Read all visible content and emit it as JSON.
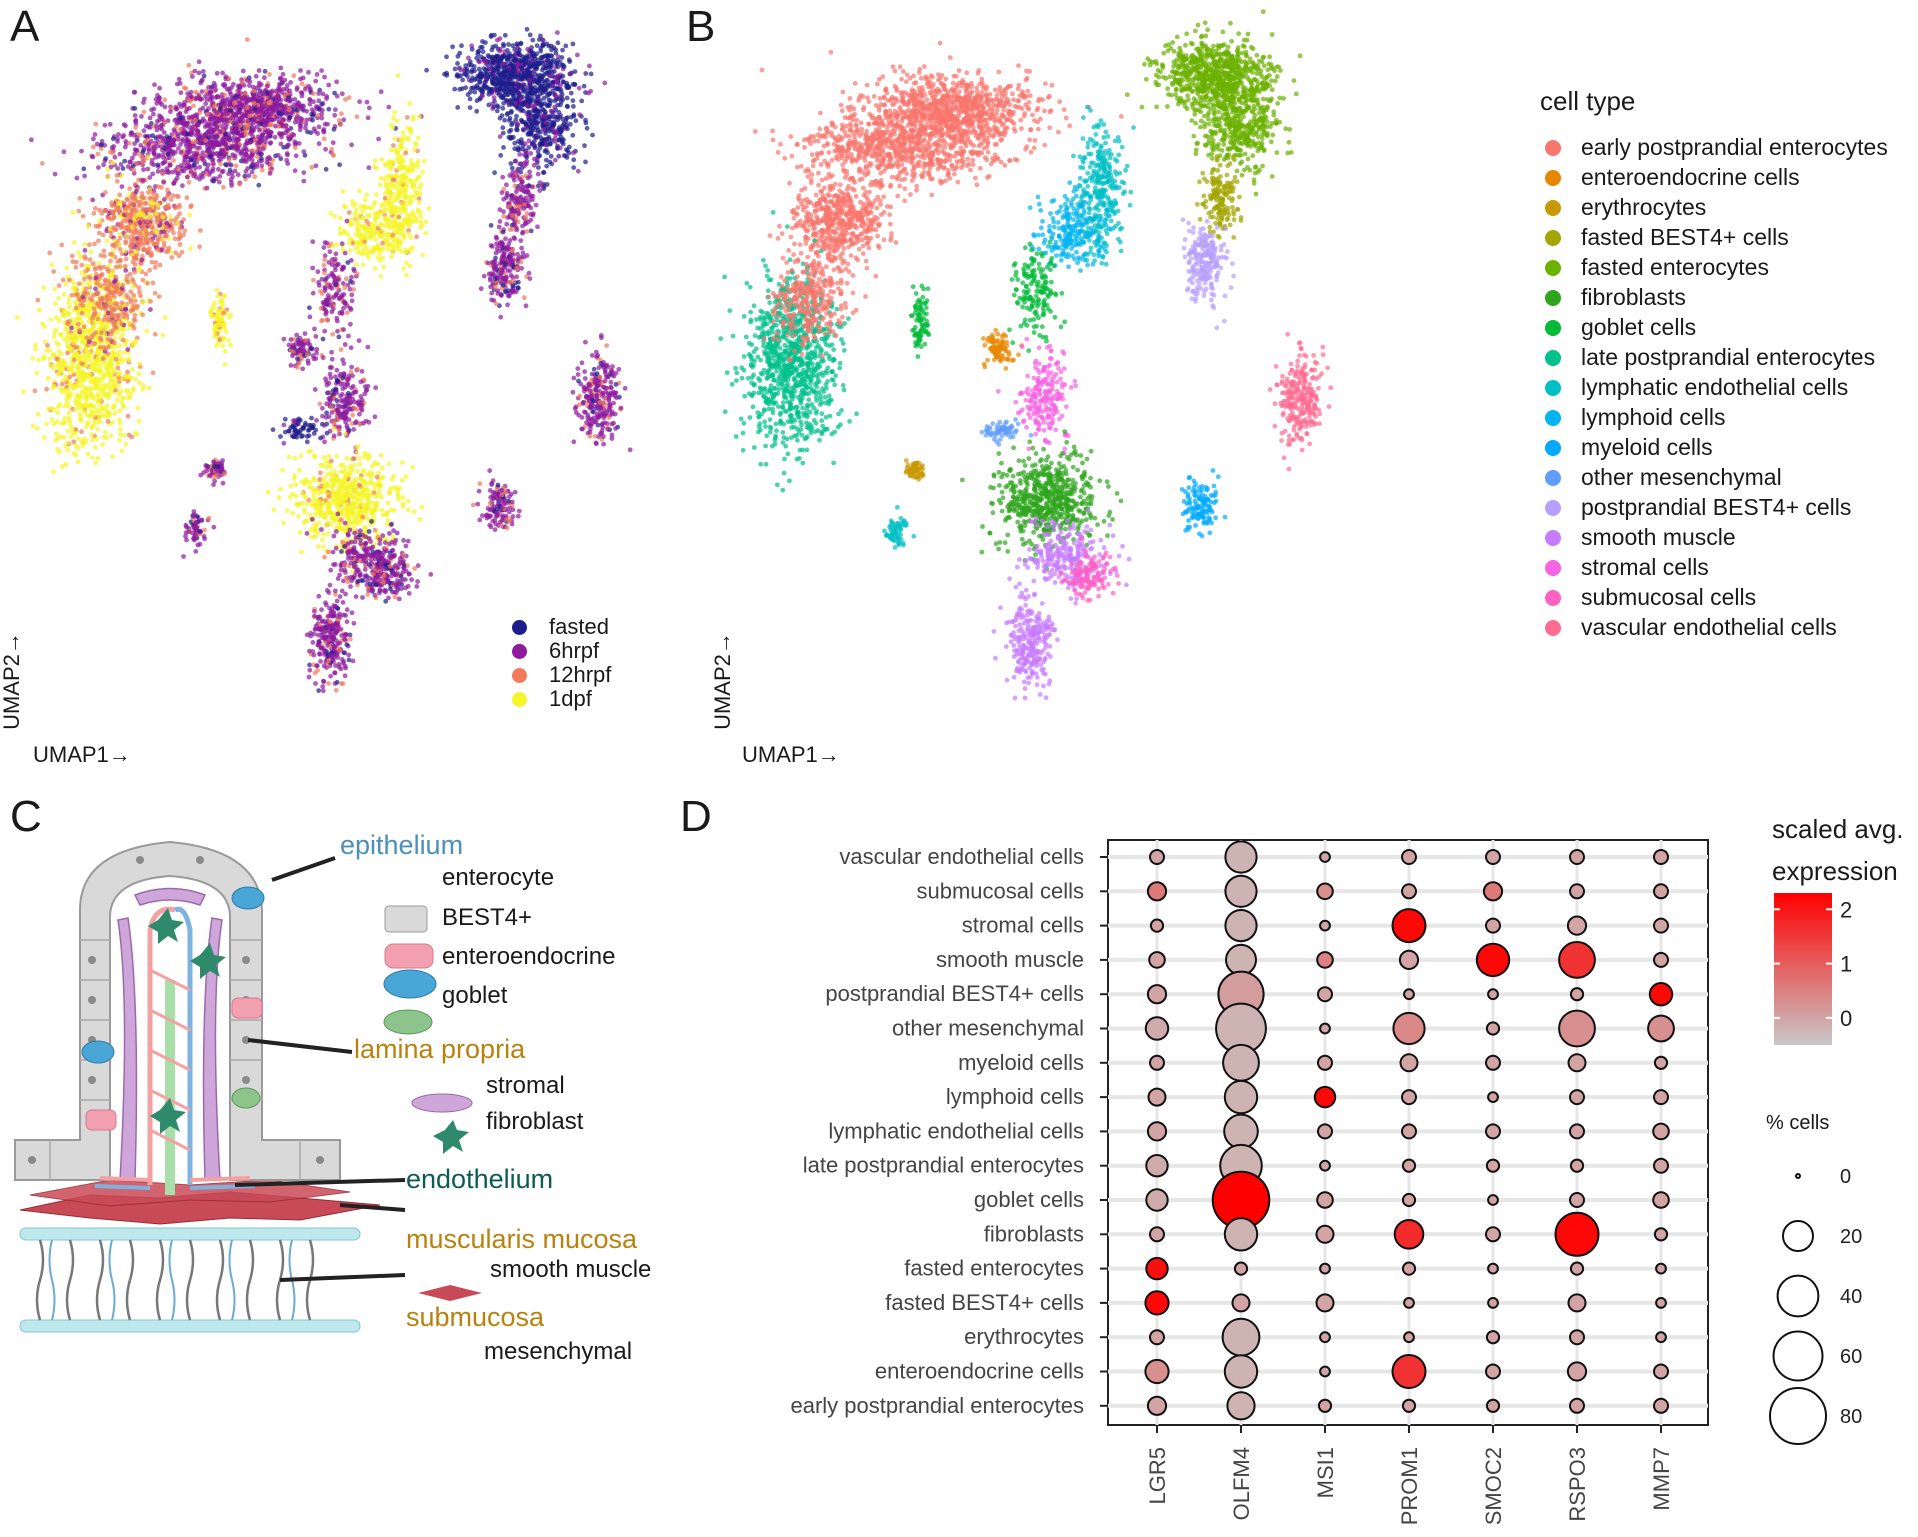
{
  "panel_letters": {
    "a": "A",
    "b": "B",
    "c": "C",
    "d": "D"
  },
  "umap_axes": {
    "x_label": "UMAP1→",
    "y_label": "UMAP2→"
  },
  "chart_data": [
    {
      "panel": "A",
      "type": "scatter",
      "xlabel": "UMAP1→",
      "ylabel": "UMAP2→",
      "legend_title": "",
      "legend_position": "bottom-right",
      "series": [
        {
          "name": "fasted",
          "color": "#1c1c8c"
        },
        {
          "name": "6hrpf",
          "color": "#8e1a9e"
        },
        {
          "name": "12hrpf",
          "color": "#f07a5a"
        },
        {
          "name": "1dpf",
          "color": "#f5f52a"
        }
      ]
    },
    {
      "panel": "B",
      "type": "scatter",
      "xlabel": "UMAP1→",
      "ylabel": "UMAP2→",
      "legend_title": "cell type",
      "legend_position": "right",
      "series": [
        {
          "name": "early postprandial enterocytes",
          "color": "#f8766d"
        },
        {
          "name": "enteroendocrine cells",
          "color": "#e58700"
        },
        {
          "name": "erythrocytes",
          "color": "#c99800"
        },
        {
          "name": "fasted BEST4+ cells",
          "color": "#a3a500"
        },
        {
          "name": "fasted enterocytes",
          "color": "#6bb100"
        },
        {
          "name": "fibroblasts",
          "color": "#2fa51e"
        },
        {
          "name": "goblet cells",
          "color": "#00ba38"
        },
        {
          "name": "late postprandial enterocytes",
          "color": "#00c08b"
        },
        {
          "name": "lymphatic endothelial cells",
          "color": "#00bfc4"
        },
        {
          "name": "lymphoid cells",
          "color": "#00b4ef"
        },
        {
          "name": "myeloid cells",
          "color": "#00a9ff"
        },
        {
          "name": "other mesenchymal",
          "color": "#619cff"
        },
        {
          "name": "postprandial BEST4+ cells",
          "color": "#b79fff"
        },
        {
          "name": "smooth muscle",
          "color": "#c77cff"
        },
        {
          "name": "stromal cells",
          "color": "#f564e3"
        },
        {
          "name": "submucosal cells",
          "color": "#ff61c3"
        },
        {
          "name": "vascular endothelial cells",
          "color": "#ff6c91"
        }
      ]
    },
    {
      "panel": "D",
      "type": "scatter",
      "subtype": "dot plot",
      "genes": [
        "LGR5",
        "OLFM4",
        "MSI1",
        "PROM1",
        "SMOC2",
        "RSPO3",
        "MMP7"
      ],
      "cell_types": [
        "vascular endothelial cells",
        "submucosal cells",
        "stromal cells",
        "smooth muscle",
        "postprandial BEST4+ cells",
        "other mesenchymal",
        "myeloid cells",
        "lymphoid cells",
        "lymphatic endothelial cells",
        "late postprandial enterocytes",
        "goblet cells",
        "fibroblasts",
        "fasted enterocytes",
        "fasted BEST4+ cells",
        "erythrocytes",
        "enteroendocrine cells",
        "early postprandial enterocytes"
      ],
      "color_legend_title": [
        "scaled avg.",
        "expression"
      ],
      "color_ticks": [
        "2",
        "1",
        "0"
      ],
      "color_range": [
        -0.5,
        2.3
      ],
      "size_legend_title": "% cells",
      "size_ticks": [
        "0",
        "20",
        "40",
        "60",
        "80"
      ],
      "size_range": [
        0,
        80
      ],
      "grid": true,
      "rows": [
        {
          "cell_type": "vascular endothelial cells",
          "pct": [
            3,
            22,
            1,
            3,
            3,
            3,
            3
          ],
          "expr": [
            0,
            -0.2,
            0,
            0,
            0,
            0,
            0
          ]
        },
        {
          "cell_type": "submucosal cells",
          "pct": [
            6,
            22,
            4,
            3,
            6,
            3,
            3
          ],
          "expr": [
            0.6,
            -0.2,
            0.3,
            0,
            0.6,
            0,
            0
          ]
        },
        {
          "cell_type": "stromal cells",
          "pct": [
            2,
            22,
            1,
            25,
            3,
            6,
            3
          ],
          "expr": [
            0,
            -0.2,
            0,
            2.2,
            0,
            0,
            0
          ]
        },
        {
          "cell_type": "smooth muscle",
          "pct": [
            4,
            20,
            4,
            6,
            24,
            30,
            3
          ],
          "expr": [
            0,
            -0.2,
            0.5,
            0,
            2.2,
            1.6,
            0
          ]
        },
        {
          "cell_type": "postprandial BEST4+ cells",
          "pct": [
            6,
            50,
            3,
            1,
            1,
            2,
            10
          ],
          "expr": [
            0,
            0.1,
            0,
            0,
            0,
            0,
            2.2
          ]
        },
        {
          "cell_type": "other mesenchymal",
          "pct": [
            10,
            62,
            1,
            22,
            2,
            30,
            14
          ],
          "expr": [
            -0.1,
            -0.2,
            0,
            0.4,
            0,
            0.3,
            0.3
          ]
        },
        {
          "cell_type": "myeloid cells",
          "pct": [
            3,
            30,
            3,
            5,
            3,
            5,
            2
          ],
          "expr": [
            0,
            -0.2,
            0,
            0,
            0,
            0,
            0
          ]
        },
        {
          "cell_type": "lymphoid cells",
          "pct": [
            5,
            24,
            8,
            3,
            1,
            3,
            3
          ],
          "expr": [
            0,
            -0.2,
            2.2,
            0,
            0,
            0,
            0
          ]
        },
        {
          "cell_type": "lymphatic endothelial cells",
          "pct": [
            6,
            26,
            3,
            3,
            3,
            3,
            4
          ],
          "expr": [
            0,
            -0.2,
            0,
            0,
            0,
            0,
            0
          ]
        },
        {
          "cell_type": "late postprandial enterocytes",
          "pct": [
            9,
            42,
            1,
            2,
            2,
            2,
            3
          ],
          "expr": [
            -0.1,
            -0.2,
            0,
            0,
            0,
            0,
            0
          ]
        },
        {
          "cell_type": "goblet cells",
          "pct": [
            9,
            82,
            4,
            2,
            1,
            3,
            4
          ],
          "expr": [
            -0.1,
            2.3,
            0,
            0,
            0,
            0,
            0
          ]
        },
        {
          "cell_type": "fibroblasts",
          "pct": [
            3,
            24,
            5,
            18,
            3,
            45,
            2
          ],
          "expr": [
            0,
            -0.2,
            0,
            1.7,
            0,
            2.2,
            0
          ]
        },
        {
          "cell_type": "fasted enterocytes",
          "pct": [
            9,
            2,
            1,
            2,
            1,
            2,
            1
          ],
          "expr": [
            2.1,
            0,
            0,
            0,
            0,
            0,
            0
          ]
        },
        {
          "cell_type": "fasted BEST4+ cells",
          "pct": [
            11,
            5,
            5,
            1,
            1,
            5,
            1
          ],
          "expr": [
            2.2,
            0,
            0,
            0,
            0,
            0,
            0
          ]
        },
        {
          "cell_type": "erythrocytes",
          "pct": [
            3,
            32,
            1,
            1,
            2,
            3,
            1
          ],
          "expr": [
            0,
            -0.2,
            0,
            0,
            0,
            0,
            0
          ]
        },
        {
          "cell_type": "enteroendocrine cells",
          "pct": [
            11,
            24,
            1,
            25,
            3,
            6,
            3
          ],
          "expr": [
            0.3,
            -0.2,
            0,
            1.6,
            0,
            0,
            0
          ]
        },
        {
          "cell_type": "early postprandial enterocytes",
          "pct": [
            6,
            16,
            2,
            2,
            2,
            3,
            3
          ],
          "expr": [
            0,
            -0.2,
            0,
            0,
            0,
            0,
            0
          ]
        }
      ]
    }
  ],
  "panel_c": {
    "labels": {
      "epithelium": "epithelium",
      "enterocyte": "enterocyte",
      "best4": "BEST4+",
      "enteroendocrine": "enteroendocrine",
      "goblet": "goblet",
      "lamina_propria": "lamina propria",
      "stromal": "stromal",
      "fibroblast": "fibroblast",
      "endothelium": "endothelium",
      "muscularis_mucosa": "muscularis mucosa",
      "smooth_muscle": "smooth muscle",
      "submucosa": "submucosa",
      "mesenchymal": "mesenchymal"
    },
    "colors": {
      "epithelium": "#4a90b8",
      "lamina_propria": "#b8820e",
      "endothelium": "#0d5c53",
      "muscularis_mucosa": "#b8820e",
      "submucosa": "#b8820e"
    }
  }
}
